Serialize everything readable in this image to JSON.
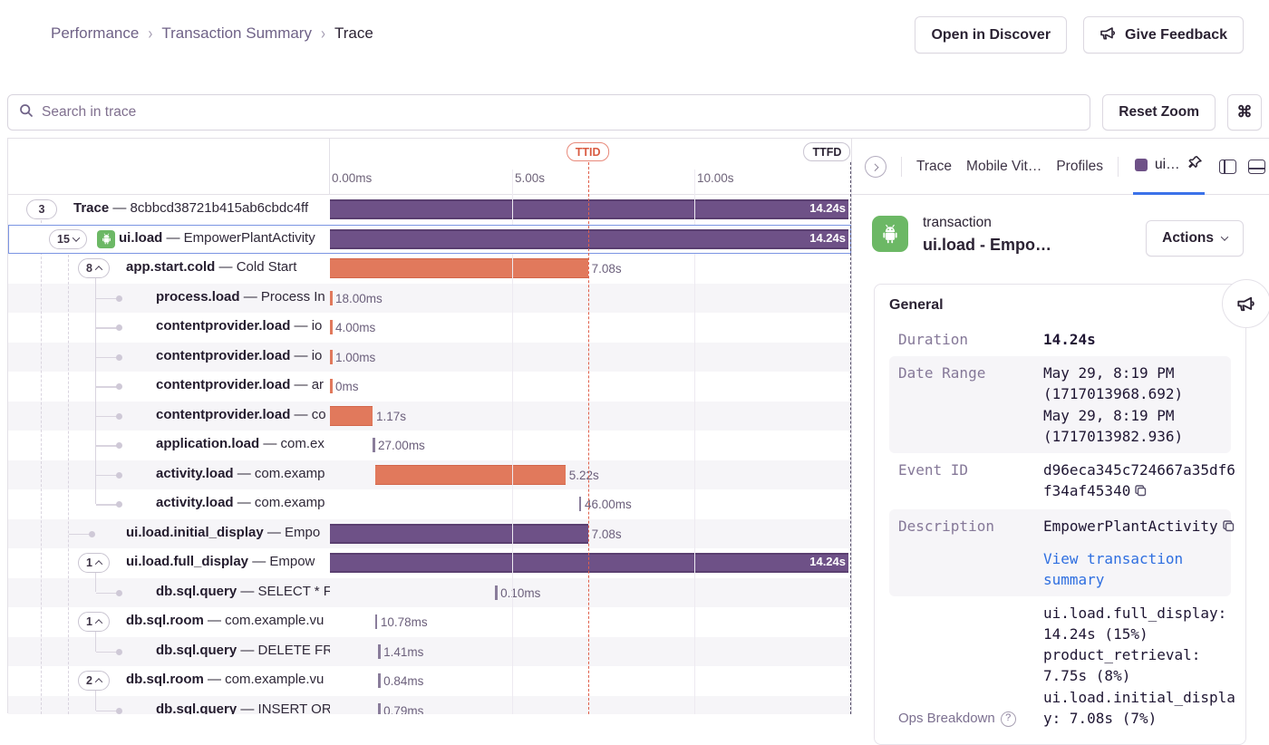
{
  "header": {
    "breadcrumb": [
      "Performance",
      "Transaction Summary",
      "Trace"
    ],
    "open_in_discover": "Open in Discover",
    "give_feedback": "Give Feedback"
  },
  "toolbar": {
    "search_placeholder": "Search in trace",
    "reset_zoom": "Reset Zoom",
    "shortcut_key": "⌘"
  },
  "timeline": {
    "ticks": [
      {
        "label": "0.00ms",
        "s": 0
      },
      {
        "label": "5.00s",
        "s": 5
      },
      {
        "label": "10.00s",
        "s": 10
      }
    ],
    "ttid": {
      "label": "TTID",
      "s": 7.08
    },
    "ttfd": {
      "label": "TTFD",
      "s": 14.24
    }
  },
  "colors": {
    "purple": "#6e5187",
    "orange": "#e1795c",
    "accent_blue": "#3b72e9",
    "ttid_red": "#e0614c"
  },
  "spans": [
    {
      "op": "Trace",
      "desc": "8cbbcd38721b415ab6cbdc4ff",
      "badge": "3",
      "chevron": null,
      "bar": {
        "kind": "bar",
        "color": "purple",
        "start": 0,
        "dur": 14.24,
        "label": "14.24s",
        "inside": true
      }
    },
    {
      "op": "ui.load",
      "desc": "EmpowerPlantActivity",
      "badge": "15",
      "chevron": "down",
      "icon": "android",
      "selected": true,
      "bar": {
        "kind": "bar",
        "color": "purple",
        "start": 0,
        "dur": 14.24,
        "label": "14.24s",
        "inside": true
      }
    },
    {
      "op": "app.start.cold",
      "desc": "Cold Start",
      "badge": "8",
      "chevron": "up",
      "bar": {
        "kind": "bar",
        "color": "orange",
        "start": 0,
        "dur": 7.08,
        "label": "7.08s"
      }
    },
    {
      "op": "process.load",
      "desc": "Process In",
      "bar": {
        "kind": "tick",
        "color": "orange",
        "start": 0,
        "label": "18.00ms"
      }
    },
    {
      "op": "contentprovider.load",
      "desc": "io",
      "bar": {
        "kind": "tick",
        "color": "orange",
        "start": 0,
        "label": "4.00ms"
      }
    },
    {
      "op": "contentprovider.load",
      "desc": "io",
      "bar": {
        "kind": "tick",
        "color": "orange",
        "start": 0,
        "label": "1.00ms"
      }
    },
    {
      "op": "contentprovider.load",
      "desc": "ar",
      "bar": {
        "kind": "tick",
        "color": "orange",
        "start": 0,
        "label": "0ms"
      }
    },
    {
      "op": "contentprovider.load",
      "desc": "co",
      "bar": {
        "kind": "bar",
        "color": "orange",
        "start": 0,
        "dur": 1.17,
        "label": "1.17s"
      }
    },
    {
      "op": "application.load",
      "desc": "com.ex",
      "bar": {
        "kind": "tick",
        "color": "gray",
        "start": 1.17,
        "label": "27.00ms"
      }
    },
    {
      "op": "activity.load",
      "desc": "com.examp",
      "bar": {
        "kind": "bar",
        "color": "orange",
        "start": 1.24,
        "dur": 5.22,
        "label": "5.22s"
      }
    },
    {
      "op": "activity.load",
      "desc": "com.examp",
      "bar": {
        "kind": "tick",
        "color": "gray",
        "start": 6.84,
        "label": "46.00ms"
      }
    },
    {
      "op": "ui.load.initial_display",
      "desc": "Empo",
      "bar": {
        "kind": "bar",
        "color": "purple",
        "start": 0,
        "dur": 7.08,
        "label": "7.08s"
      }
    },
    {
      "op": "ui.load.full_display",
      "desc": "Empow",
      "badge": "1",
      "chevron": "up",
      "bar": {
        "kind": "bar",
        "color": "purple",
        "start": 0,
        "dur": 14.24,
        "label": "14.24s",
        "inside": true
      }
    },
    {
      "op": "db.sql.query",
      "desc": "SELECT * F",
      "bar": {
        "kind": "tick",
        "color": "gray",
        "start": 4.53,
        "label": "0.10ms"
      }
    },
    {
      "op": "db.sql.room",
      "desc": "com.example.vu",
      "badge": "1",
      "chevron": "up",
      "bar": {
        "kind": "tick",
        "color": "gray",
        "start": 1.24,
        "label": "10.78ms"
      }
    },
    {
      "op": "db.sql.query",
      "desc": "DELETE FR",
      "bar": {
        "kind": "tick",
        "color": "gray",
        "start": 1.32,
        "label": "1.41ms"
      }
    },
    {
      "op": "db.sql.room",
      "desc": "com.example.vu",
      "badge": "2",
      "chevron": "up",
      "bar": {
        "kind": "tick",
        "color": "gray",
        "start": 1.32,
        "label": "0.84ms"
      }
    },
    {
      "op": "db.sql.query",
      "desc": "INSERT OR",
      "bar": {
        "kind": "tick",
        "color": "gray",
        "start": 1.32,
        "label": "0.79ms"
      }
    }
  ],
  "panel": {
    "tabs": [
      "Trace",
      "Mobile Vit…",
      "Profiles"
    ],
    "active_tab": "ui…",
    "transaction": {
      "type_label": "transaction",
      "title": "ui.load - Empo…",
      "actions_label": "Actions"
    },
    "general": {
      "title": "General",
      "rows": [
        {
          "label": "Duration",
          "lines": [
            "14.24s"
          ],
          "bold": true
        },
        {
          "label": "Date Range",
          "striped": true,
          "lines": [
            "May 29, 8:19 PM",
            "(1717013968.692)",
            "May 29, 8:19 PM",
            "(1717013982.936)"
          ]
        },
        {
          "label": "Event ID",
          "copy": true,
          "lines": [
            "d96eca345c724667a35df6f34af45340"
          ]
        },
        {
          "label": "Description",
          "striped": true,
          "copy": true,
          "lines": [
            "EmpowerPlantActivity"
          ],
          "link": "View transaction summary"
        },
        {
          "label": "Ops Breakdown",
          "help": true,
          "ops": true,
          "lines": [
            "ui.load.full_display: 14.24s (15%)",
            "product_retrieval: 7.75s (8%)",
            "ui.load.initial_display: 7.08s (7%)"
          ]
        }
      ]
    }
  }
}
